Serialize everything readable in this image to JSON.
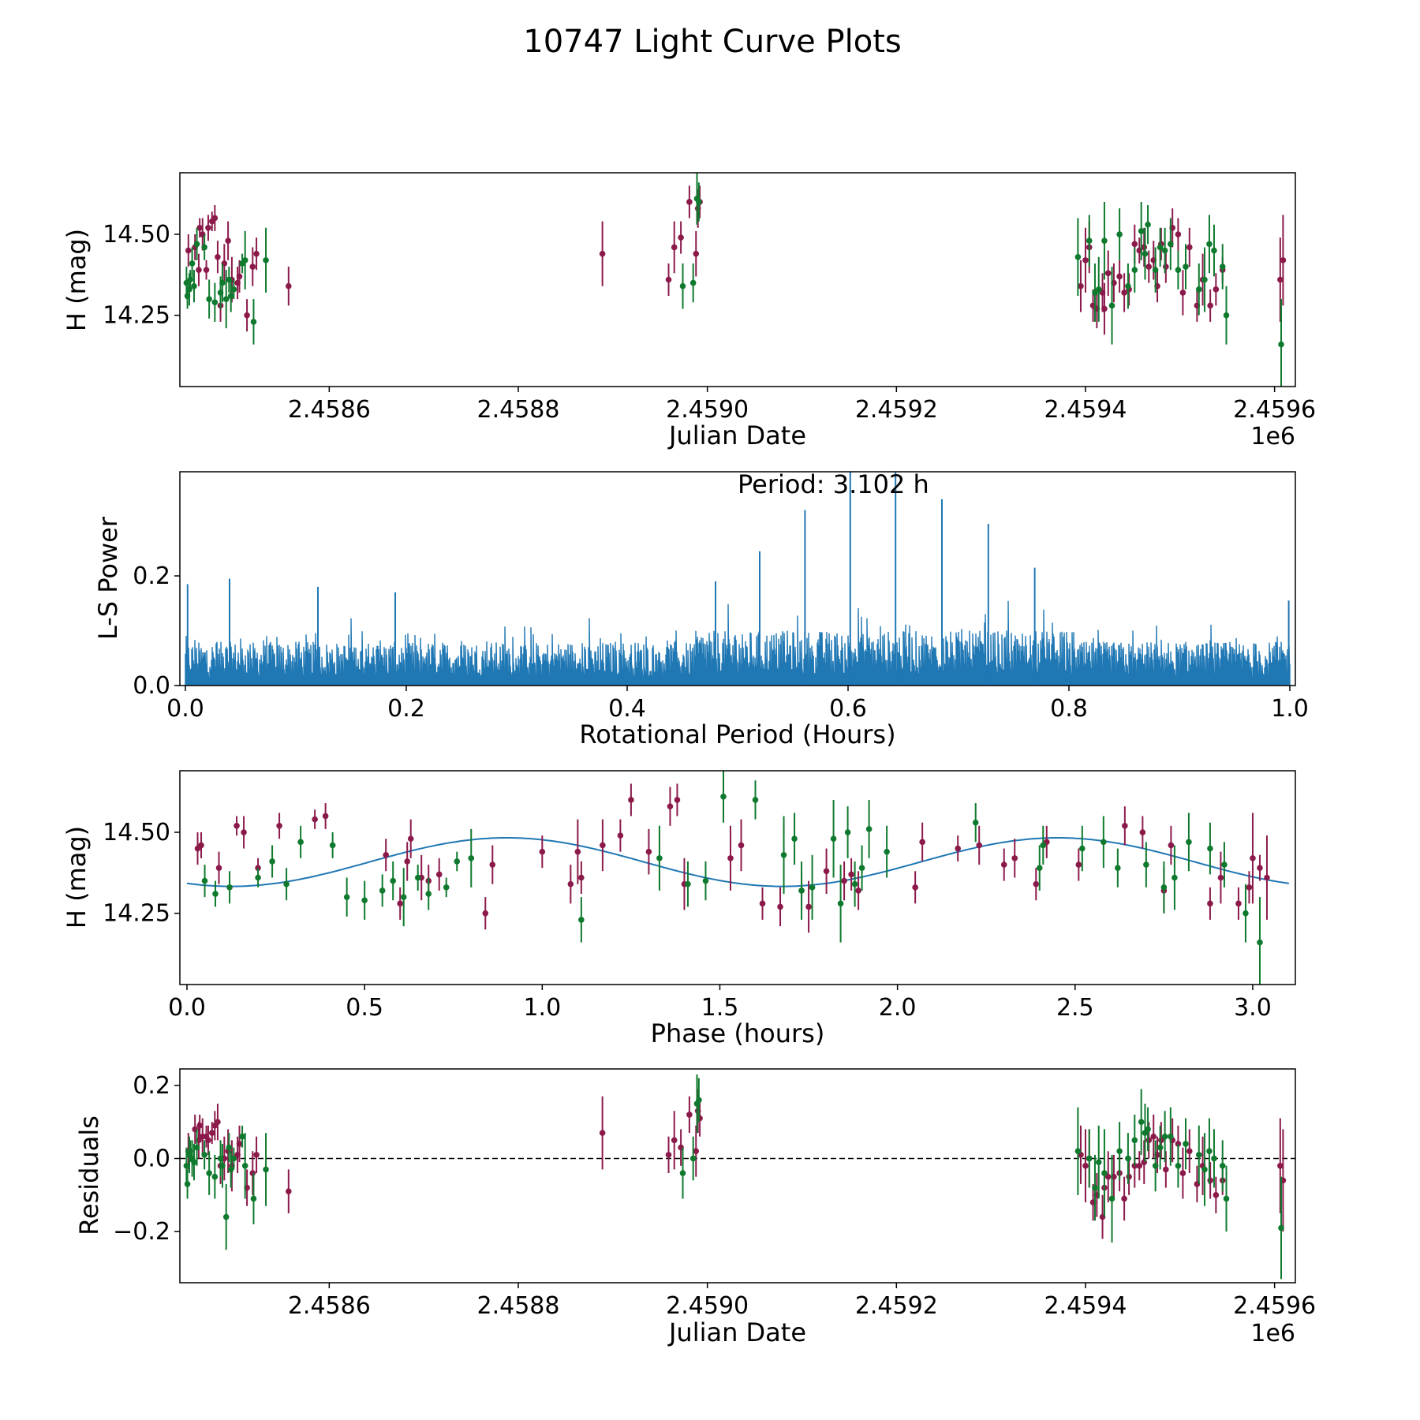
{
  "chart_data": {
    "title": "10747 Light Curve Plots",
    "colors": {
      "band_a": "#8b1a4b",
      "band_b": "#0f7a2e",
      "curve": "#1f77b4",
      "frame": "#000000"
    },
    "panels": [
      {
        "type": "scatter",
        "name": "light-curve",
        "xlabel": "Julian Date",
        "ylabel": "H (mag)",
        "xlim": [
          2458442,
          2459622
        ],
        "ylim": [
          14.03,
          14.69
        ],
        "xticks": [
          2458600,
          2458800,
          2459000,
          2459200,
          2459400,
          2459600
        ],
        "xtick_labels": [
          "2.4586",
          "2.4588",
          "2.4590",
          "2.4592",
          "2.4594",
          "2.4596"
        ],
        "offset_label": "1e6",
        "yticks": [
          14.25,
          14.5
        ],
        "ytick_labels": [
          "14.25",
          "14.50"
        ]
      },
      {
        "type": "line",
        "name": "periodogram",
        "xlabel": "Rotational Period (Hours)",
        "ylabel": "L-S Power",
        "xlim": [
          -0.005,
          1.005
        ],
        "ylim": [
          0,
          0.39
        ],
        "xticks": [
          0,
          0.2,
          0.4,
          0.6,
          0.8,
          1.0
        ],
        "xtick_labels": [
          "0.0",
          "0.2",
          "0.4",
          "0.6",
          "0.8",
          "1.0"
        ],
        "yticks": [
          0,
          0.2
        ],
        "ytick_labels": [
          "0.0",
          "0.2"
        ],
        "annotation": "Period: 3.102 h",
        "annotation_x": 0.5,
        "baseline": 0.08,
        "peaks": [
          {
            "x": 0.002,
            "y": 0.185
          },
          {
            "x": 0.04,
            "y": 0.195
          },
          {
            "x": 0.12,
            "y": 0.18
          },
          {
            "x": 0.19,
            "y": 0.17
          },
          {
            "x": 0.48,
            "y": 0.19
          },
          {
            "x": 0.52,
            "y": 0.245
          },
          {
            "x": 0.561,
            "y": 0.32
          },
          {
            "x": 0.602,
            "y": 0.39
          },
          {
            "x": 0.643,
            "y": 0.39
          },
          {
            "x": 0.685,
            "y": 0.34
          },
          {
            "x": 0.727,
            "y": 0.295
          },
          {
            "x": 0.769,
            "y": 0.215
          },
          {
            "x": 0.999,
            "y": 0.155
          }
        ]
      },
      {
        "type": "scatter",
        "name": "phase-plot",
        "xlabel": "Phase (hours)",
        "ylabel": "H (mag)",
        "xlim": [
          -0.02,
          3.12
        ],
        "ylim": [
          14.03,
          14.69
        ],
        "xticks": [
          0,
          0.5,
          1.0,
          1.5,
          2.0,
          2.5,
          3.0
        ],
        "xtick_labels": [
          "0.0",
          "0.5",
          "1.0",
          "1.5",
          "2.0",
          "2.5",
          "3.0"
        ],
        "yticks": [
          14.25,
          14.5
        ],
        "ytick_labels": [
          "14.25",
          "14.50"
        ],
        "fit": {
          "period_hours": 3.102,
          "mean": 14.408,
          "amplitude": 0.075,
          "peak_phase": 0.9
        }
      },
      {
        "type": "scatter",
        "name": "residuals",
        "xlabel": "Julian Date",
        "ylabel": "Residuals",
        "xlim": [
          2458442,
          2459622
        ],
        "ylim": [
          -0.34,
          0.245
        ],
        "xticks": [
          2458600,
          2458800,
          2459000,
          2459200,
          2459400,
          2459600
        ],
        "xtick_labels": [
          "2.4586",
          "2.4588",
          "2.4590",
          "2.4592",
          "2.4594",
          "2.4596"
        ],
        "offset_label": "1e6",
        "yticks": [
          -0.2,
          0.0,
          0.2
        ],
        "ytick_labels": [
          "−0.2",
          "0.0",
          "0.2"
        ],
        "zero_line": 0
      }
    ],
    "series": [
      {
        "name": "band_a",
        "jd": [
          2458451,
          2458458,
          2458462,
          2458463,
          2458466,
          2458470,
          2458472,
          2458476,
          2458479,
          2458482,
          2458485,
          2458489,
          2458493,
          2458497,
          2458503,
          2458505,
          2458513,
          2458519,
          2458523,
          2458557,
          2458889,
          2458959,
          2458965,
          2458972,
          2458981,
          2458988,
          2458990,
          2458992,
          2459395,
          2459400,
          2459404,
          2459408,
          2459412,
          2459418,
          2459420,
          2459424,
          2459430,
          2459436,
          2459441,
          2459446,
          2459452,
          2459457,
          2459462,
          2459467,
          2459472,
          2459476,
          2459480,
          2459485,
          2459492,
          2459498,
          2459503,
          2459510,
          2459518,
          2459524,
          2459532,
          2459538,
          2459545,
          2459606,
          2459609
        ],
        "mag": [
          14.45,
          14.46,
          14.39,
          14.52,
          14.5,
          14.39,
          14.52,
          14.54,
          14.55,
          14.43,
          14.28,
          14.41,
          14.48,
          14.36,
          14.35,
          14.37,
          14.25,
          14.4,
          14.44,
          14.34,
          14.44,
          14.36,
          14.46,
          14.49,
          14.6,
          14.44,
          14.58,
          14.6,
          14.34,
          14.42,
          14.46,
          14.28,
          14.27,
          14.32,
          14.27,
          14.38,
          14.35,
          14.37,
          14.32,
          14.33,
          14.47,
          14.45,
          14.46,
          14.4,
          14.42,
          14.34,
          14.47,
          14.4,
          14.52,
          14.5,
          14.32,
          14.46,
          14.28,
          14.36,
          14.28,
          14.33,
          14.39,
          14.36,
          14.42
        ],
        "phase": [
          0.03,
          0.04,
          0.09,
          0.14,
          0.16,
          0.2,
          0.26,
          0.36,
          0.39,
          0.56,
          0.6,
          0.62,
          0.63,
          0.66,
          0.68,
          0.71,
          0.84,
          0.86,
          1.0,
          1.08,
          1.1,
          1.11,
          1.17,
          1.22,
          1.25,
          1.3,
          1.36,
          1.38,
          1.4,
          1.53,
          1.56,
          1.62,
          1.67,
          1.73,
          1.75,
          1.8,
          1.85,
          1.87,
          1.89,
          2.05,
          2.07,
          2.17,
          2.23,
          2.3,
          2.33,
          2.39,
          2.42,
          2.51,
          2.64,
          2.69,
          2.75,
          2.77,
          2.88,
          2.91,
          2.96,
          2.99,
          3.02,
          3.04,
          3.0
        ],
        "err": [
          0.05,
          0.04,
          0.05,
          0.03,
          0.05,
          0.03,
          0.04,
          0.03,
          0.04,
          0.05,
          0.05,
          0.06,
          0.06,
          0.07,
          0.05,
          0.05,
          0.05,
          0.06,
          0.05,
          0.06,
          0.1,
          0.05,
          0.08,
          0.05,
          0.05,
          0.07,
          0.06,
          0.05,
          0.08,
          0.1,
          0.08,
          0.05,
          0.06,
          0.06,
          0.08,
          0.07,
          0.06,
          0.05,
          0.06,
          0.05,
          0.06,
          0.04,
          0.06,
          0.05,
          0.06,
          0.05,
          0.05,
          0.05,
          0.06,
          0.05,
          0.07,
          0.06,
          0.05,
          0.08,
          0.05,
          0.05,
          0.04,
          0.13,
          0.14
        ],
        "resid": [
          0.02,
          0.08,
          0.05,
          0.09,
          0.06,
          0.06,
          0.05,
          0.07,
          0.09,
          0.1,
          -0.02,
          0.0,
          0.02,
          -0.02,
          0.01,
          0.04,
          -0.08,
          -0.04,
          0.01,
          -0.09,
          0.07,
          0.01,
          0.05,
          0.03,
          0.12,
          0.02,
          0.13,
          0.11,
          0.01,
          -0.02,
          0.0,
          -0.12,
          -0.1,
          -0.16,
          -0.08,
          -0.05,
          -0.05,
          -0.04,
          -0.11,
          -0.05,
          -0.02,
          -0.02,
          -0.01,
          0.05,
          0.06,
          0.01,
          0.05,
          -0.03,
          0.05,
          0.04,
          -0.04,
          0.02,
          -0.07,
          -0.02,
          -0.06,
          -0.1,
          -0.06,
          -0.02,
          -0.06
        ]
      },
      {
        "name": "band_b",
        "jd": [
          2458449,
          2458450,
          2458452,
          2458453,
          2458455,
          2458457,
          2458460,
          2458468,
          2458473,
          2458479,
          2458485,
          2458487,
          2458491,
          2458494,
          2458496,
          2458499,
          2458508,
          2458511,
          2458520,
          2458533,
          2458974,
          2458985,
          2458989,
          2458991,
          2459392,
          2459404,
          2459410,
          2459414,
          2459420,
          2459428,
          2459436,
          2459445,
          2459452,
          2459459,
          2459463,
          2459466,
          2459474,
          2459479,
          2459484,
          2459490,
          2459498,
          2459506,
          2459520,
          2459526,
          2459531,
          2459536,
          2459545,
          2459549,
          2459607
        ],
        "mag": [
          14.35,
          14.31,
          14.33,
          14.36,
          14.41,
          14.34,
          14.47,
          14.46,
          14.3,
          14.29,
          14.32,
          14.35,
          14.3,
          14.36,
          14.31,
          14.33,
          14.41,
          14.42,
          14.23,
          14.42,
          14.34,
          14.35,
          14.61,
          14.6,
          14.43,
          14.48,
          14.32,
          14.33,
          14.48,
          14.28,
          14.5,
          14.34,
          14.39,
          14.51,
          14.44,
          14.53,
          14.39,
          14.46,
          14.45,
          14.47,
          14.39,
          14.4,
          14.33,
          14.36,
          14.47,
          14.45,
          14.4,
          14.25,
          14.16
        ],
        "phase": [
          0.05,
          0.08,
          0.12,
          0.2,
          0.24,
          0.28,
          0.32,
          0.41,
          0.45,
          0.5,
          0.55,
          0.58,
          0.61,
          0.65,
          0.68,
          0.73,
          0.76,
          0.8,
          1.11,
          1.33,
          1.41,
          1.46,
          1.51,
          1.6,
          1.68,
          1.71,
          1.73,
          1.76,
          1.82,
          1.84,
          1.86,
          1.88,
          1.9,
          1.92,
          1.97,
          2.22,
          2.4,
          2.41,
          2.52,
          2.58,
          2.62,
          2.7,
          2.75,
          2.78,
          2.82,
          2.88,
          2.92,
          2.98,
          3.02
        ],
        "err": [
          0.05,
          0.04,
          0.05,
          0.03,
          0.05,
          0.05,
          0.05,
          0.04,
          0.06,
          0.06,
          0.05,
          0.06,
          0.09,
          0.04,
          0.05,
          0.03,
          0.03,
          0.09,
          0.07,
          0.1,
          0.07,
          0.06,
          0.08,
          0.06,
          0.12,
          0.08,
          0.09,
          0.1,
          0.12,
          0.12,
          0.08,
          0.07,
          0.07,
          0.09,
          0.08,
          0.06,
          0.07,
          0.06,
          0.07,
          0.08,
          0.06,
          0.07,
          0.08,
          0.1,
          0.09,
          0.08,
          0.07,
          0.09,
          0.14
        ],
        "resid": [
          -0.02,
          -0.07,
          0.01,
          0.02,
          0.0,
          -0.01,
          0.03,
          0.01,
          -0.04,
          -0.05,
          0.0,
          -0.02,
          -0.16,
          0.03,
          -0.03,
          0.0,
          0.06,
          -0.02,
          -0.11,
          -0.03,
          -0.04,
          0.0,
          0.15,
          0.16,
          0.02,
          0.0,
          -0.08,
          -0.01,
          -0.04,
          -0.11,
          0.02,
          0.0,
          0.05,
          0.1,
          0.07,
          0.08,
          -0.02,
          0.03,
          0.06,
          0.06,
          -0.02,
          0.04,
          0.01,
          -0.03,
          0.02,
          0.0,
          -0.02,
          -0.11,
          -0.19
        ]
      }
    ]
  }
}
